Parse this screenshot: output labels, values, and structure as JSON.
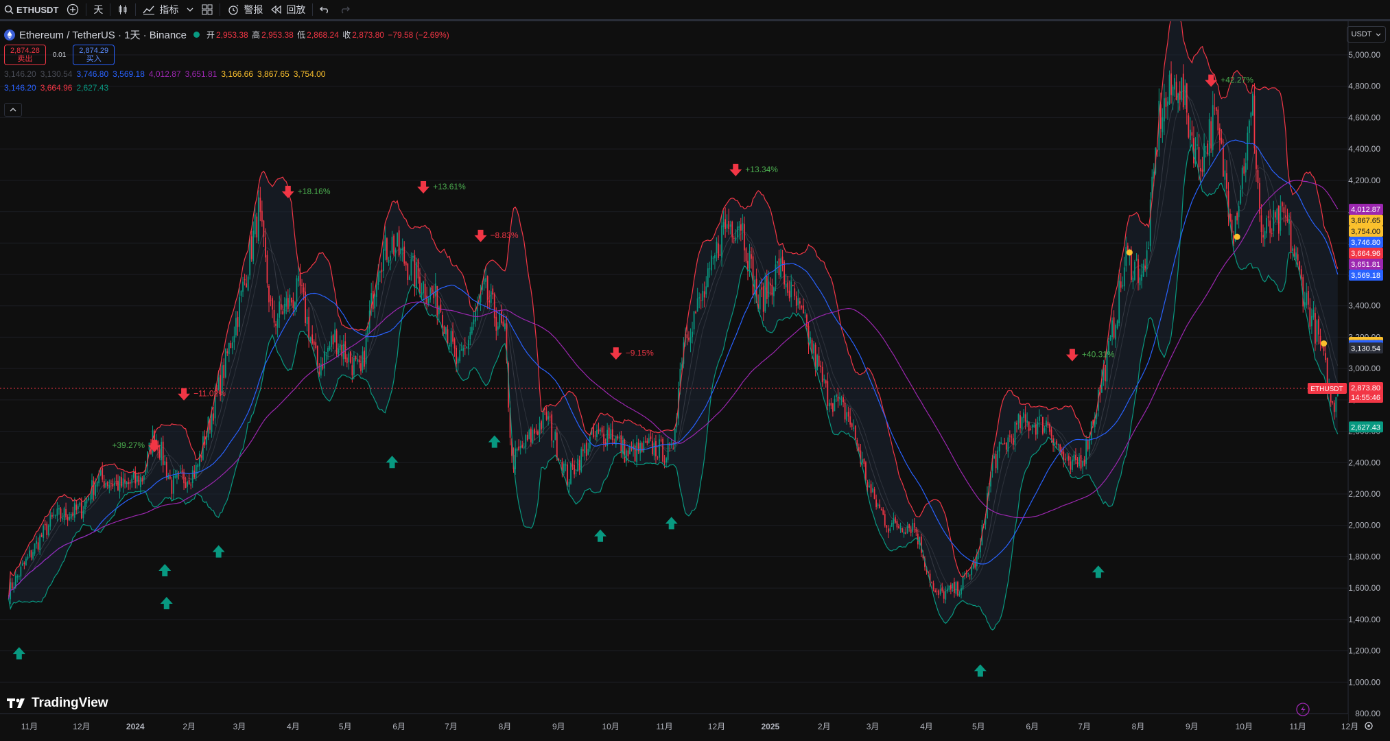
{
  "toolbar": {
    "symbol": "ETHUSDT",
    "interval": "天",
    "indicators_label": "指标",
    "alert_label": "警报",
    "replay_label": "回放"
  },
  "legend": {
    "title": "Ethereum / TetherUS · 1天 · Binance",
    "open_label": "开",
    "open": "2,953.38",
    "high_label": "高",
    "high": "2,953.38",
    "low_label": "低",
    "low": "2,868.24",
    "close_label": "收",
    "close": "2,873.80",
    "change": "−79.58 (−2.69%)",
    "sell_price": "2,874.28",
    "sell_label": "卖出",
    "spread": "0.01",
    "buy_price": "2,874.29",
    "buy_label": "买入",
    "ind_row1": [
      {
        "v": "3,146.20",
        "c": "#4a4d57"
      },
      {
        "v": "3,130.54",
        "c": "#4a4d57"
      },
      {
        "v": "3,746.80",
        "c": "#2962ff"
      },
      {
        "v": "3,569.18",
        "c": "#2962ff"
      },
      {
        "v": "4,012.87",
        "c": "#9c27b0"
      },
      {
        "v": "3,651.81",
        "c": "#9c27b0"
      },
      {
        "v": "3,166.66",
        "c": "#fbc02d"
      },
      {
        "v": "3,867.65",
        "c": "#fbc02d"
      },
      {
        "v": "3,754.00",
        "c": "#fbc02d"
      }
    ],
    "ind_row2": [
      {
        "v": "3,146.20",
        "c": "#2962ff"
      },
      {
        "v": "3,664.96",
        "c": "#f23645"
      },
      {
        "v": "2,627.43",
        "c": "#089981"
      }
    ]
  },
  "currency_button": "USDT",
  "logo_text": "TradingView",
  "colors": {
    "up": "#089981",
    "down": "#f23645",
    "bg": "#0f0f0f",
    "grid": "#1c1e24",
    "text": "#b2b5be",
    "ma_blue": "#2962ff",
    "ma_purple": "#9c27b0",
    "bb_upper": "#f23645",
    "bb_lower": "#089981"
  },
  "chart_data": {
    "type": "candlestick",
    "symbol": "ETHUSDT",
    "timeframe": "1天",
    "y_axis": {
      "min": 800,
      "max": 5000,
      "ticks": [
        "5,000.00",
        "4,800.00",
        "4,600.00",
        "4,400.00",
        "4,200.00",
        "4,000.00",
        "3,800.00",
        "3,600.00",
        "3,400.00",
        "3,200.00",
        "3,000.00",
        "2,800.00",
        "2,600.00",
        "2,400.00",
        "2,200.00",
        "2,000.00",
        "1,800.00",
        "1,600.00",
        "1,400.00",
        "1,200.00",
        "1,000.00",
        "800.00"
      ]
    },
    "x_axis_labels": [
      "11月",
      "12月",
      "2024",
      "2月",
      "3月",
      "4月",
      "5月",
      "6月",
      "7月",
      "8月",
      "9月",
      "10月",
      "11月",
      "12月",
      "2025",
      "2月",
      "3月",
      "4月",
      "5月",
      "6月",
      "7月",
      "8月",
      "9月",
      "10月",
      "11月",
      "12月"
    ],
    "close_path": [
      [
        "2023-10-20",
        1580
      ],
      [
        "2023-11-05",
        1880
      ],
      [
        "2023-11-15",
        2050
      ],
      [
        "2023-12-01",
        2100
      ],
      [
        "2023-12-10",
        2300
      ],
      [
        "2023-12-25",
        2250
      ],
      [
        "2024-01-05",
        2300
      ],
      [
        "2024-01-12",
        2600
      ],
      [
        "2024-01-22",
        2250
      ],
      [
        "2024-02-05",
        2350
      ],
      [
        "2024-02-20",
        2950
      ],
      [
        "2024-03-01",
        3400
      ],
      [
        "2024-03-12",
        4000
      ],
      [
        "2024-03-20",
        3300
      ],
      [
        "2024-04-05",
        3500
      ],
      [
        "2024-04-15",
        3000
      ],
      [
        "2024-04-25",
        3200
      ],
      [
        "2024-05-10",
        2950
      ],
      [
        "2024-05-20",
        3700
      ],
      [
        "2024-05-28",
        3800
      ],
      [
        "2024-06-10",
        3600
      ],
      [
        "2024-06-25",
        3400
      ],
      [
        "2024-07-05",
        3000
      ],
      [
        "2024-07-20",
        3500
      ],
      [
        "2024-08-01",
        3200
      ],
      [
        "2024-08-05",
        2400
      ],
      [
        "2024-08-25",
        2700
      ],
      [
        "2024-09-06",
        2300
      ],
      [
        "2024-09-20",
        2550
      ],
      [
        "2024-10-01",
        2600
      ],
      [
        "2024-10-10",
        2450
      ],
      [
        "2024-10-25",
        2500
      ],
      [
        "2024-11-05",
        2450
      ],
      [
        "2024-11-12",
        3200
      ],
      [
        "2024-11-25",
        3500
      ],
      [
        "2024-12-05",
        3900
      ],
      [
        "2024-12-15",
        3950
      ],
      [
        "2024-12-25",
        3400
      ],
      [
        "2025-01-06",
        3650
      ],
      [
        "2025-01-20",
        3300
      ],
      [
        "2025-02-02",
        2850
      ],
      [
        "2025-02-15",
        2700
      ],
      [
        "2025-02-28",
        2200
      ],
      [
        "2025-03-10",
        2000
      ],
      [
        "2025-03-25",
        2000
      ],
      [
        "2025-04-06",
        1550
      ],
      [
        "2025-04-20",
        1600
      ],
      [
        "2025-05-01",
        1800
      ],
      [
        "2025-05-09",
        2400
      ],
      [
        "2025-05-25",
        2650
      ],
      [
        "2025-06-10",
        2650
      ],
      [
        "2025-06-22",
        2350
      ],
      [
        "2025-07-01",
        2450
      ],
      [
        "2025-07-15",
        3100
      ],
      [
        "2025-07-25",
        3700
      ],
      [
        "2025-08-05",
        3600
      ],
      [
        "2025-08-13",
        4600
      ],
      [
        "2025-08-24",
        4850
      ],
      [
        "2025-09-05",
        4300
      ],
      [
        "2025-09-14",
        4600
      ],
      [
        "2025-09-25",
        3900
      ],
      [
        "2025-10-06",
        4650
      ],
      [
        "2025-10-11",
        3850
      ],
      [
        "2025-10-25",
        3950
      ],
      [
        "2025-11-04",
        3500
      ],
      [
        "2025-11-14",
        3150
      ],
      [
        "2025-11-21",
        2750
      ],
      [
        "2025-11-24",
        2873.8
      ]
    ],
    "signals": [
      {
        "type": "buy",
        "date": "2023-10-26",
        "price": 1180
      },
      {
        "type": "buy",
        "date": "2024-01-18",
        "price": 1710
      },
      {
        "type": "buy",
        "date": "2024-01-19",
        "price": 1500
      },
      {
        "type": "buy",
        "date": "2024-02-18",
        "price": 1830
      },
      {
        "type": "buy",
        "date": "2024-05-28",
        "price": 2400
      },
      {
        "type": "buy",
        "date": "2024-07-26",
        "price": 2530
      },
      {
        "type": "buy",
        "date": "2024-09-25",
        "price": 1930
      },
      {
        "type": "buy",
        "date": "2024-11-05",
        "price": 2010
      },
      {
        "type": "buy",
        "date": "2025-05-02",
        "price": 1070
      },
      {
        "type": "buy",
        "date": "2025-07-09",
        "price": 1700
      },
      {
        "type": "sell",
        "date": "2024-01-12",
        "price": 2510,
        "label": "+39.27%"
      },
      {
        "type": "sell",
        "date": "2024-01-29",
        "price": 2840,
        "label": "−11.02%"
      },
      {
        "type": "sell",
        "date": "2024-03-29",
        "price": 4130,
        "label": "+18.16%"
      },
      {
        "type": "sell",
        "date": "2024-06-15",
        "price": 4160,
        "label": "+13.61%"
      },
      {
        "type": "sell",
        "date": "2024-07-18",
        "price": 3850,
        "label": "−8.83%"
      },
      {
        "type": "sell",
        "date": "2024-10-04",
        "price": 3100,
        "label": "−9.15%"
      },
      {
        "type": "sell",
        "date": "2024-12-12",
        "price": 4270,
        "label": "+13.34%"
      },
      {
        "type": "sell",
        "date": "2025-06-24",
        "price": 3090,
        "label": "+40.31%"
      },
      {
        "type": "sell",
        "date": "2025-09-12",
        "price": 4840,
        "label": "+42.27%"
      }
    ],
    "yellow_dots": [
      [
        "2025-07-27",
        3740
      ],
      [
        "2025-09-27",
        3840
      ],
      [
        "2025-11-16",
        3160
      ]
    ],
    "price_labels": [
      {
        "v": "4,012.87",
        "c": "#9c27b0"
      },
      {
        "v": "3,867.65",
        "c": "#fbc02d"
      },
      {
        "v": "3,754.00",
        "c": "#fbc02d"
      },
      {
        "v": "3,746.80",
        "c": "#2962ff"
      },
      {
        "v": "3,664.96",
        "c": "#f23645"
      },
      {
        "v": "3,651.81",
        "c": "#9c27b0"
      },
      {
        "v": "3,569.18",
        "c": "#2962ff"
      },
      {
        "v": "3,166.66",
        "c": "#fbc02d"
      },
      {
        "v": "3,146.20",
        "c": "#2a2e39"
      },
      {
        "v": "3,146.20",
        "c": "#2962ff"
      },
      {
        "v": "3,130.54",
        "c": "#2a2e39"
      },
      {
        "v": "2,873.80",
        "c": "#f23645"
      },
      {
        "v": "2,627.43",
        "c": "#089981"
      }
    ],
    "last_price": {
      "v": "2,873.80",
      "countdown": "14:55:46",
      "symbol_tag": "ETHUSDT"
    },
    "grid": true
  }
}
